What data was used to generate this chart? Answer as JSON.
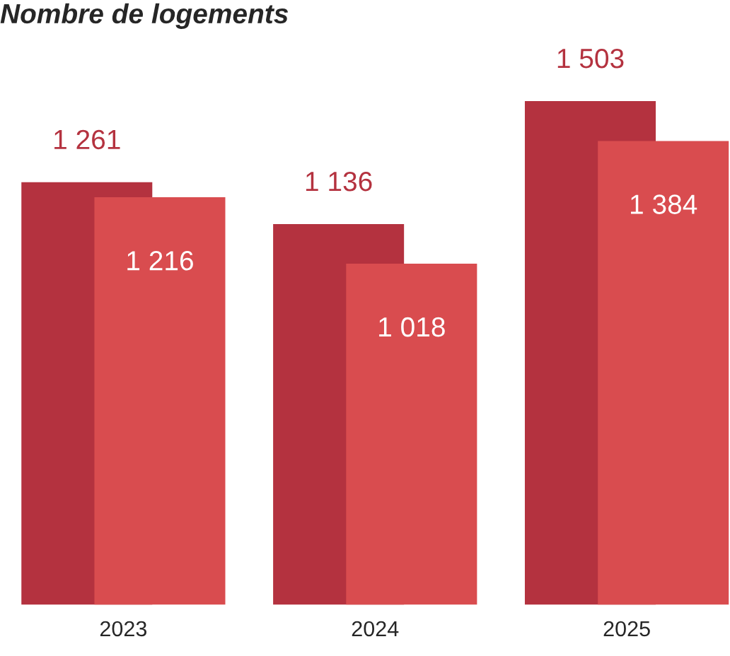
{
  "chart_data": {
    "type": "bar",
    "title": "Nombre de logements",
    "categories": [
      "2023",
      "2024",
      "2025"
    ],
    "series": [
      {
        "color": "#b4323f",
        "values": [
          1261,
          1136,
          1503
        ],
        "value_labels": [
          "1 261",
          "1 136",
          "1 503"
        ]
      },
      {
        "color": "#d94c4f",
        "values": [
          1216,
          1018,
          1384
        ],
        "value_labels": [
          "1 216",
          "1 018",
          "1 384"
        ]
      }
    ]
  }
}
